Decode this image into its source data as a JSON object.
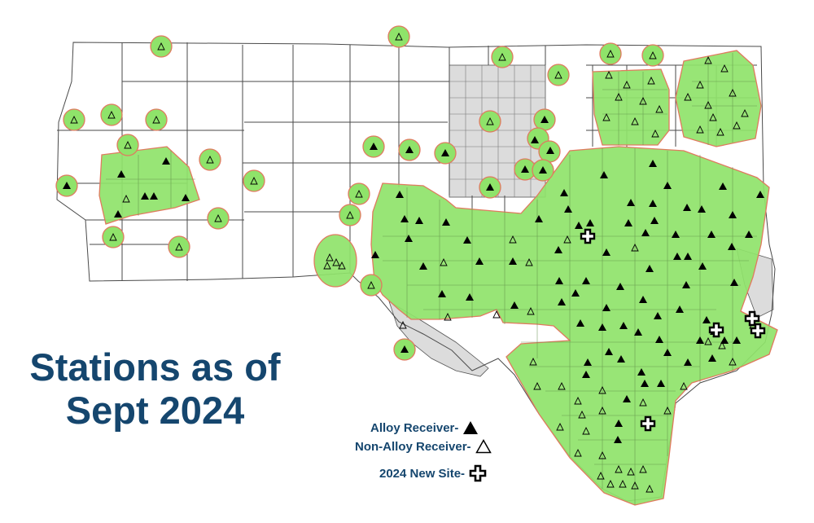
{
  "title": {
    "line1": "Stations as of",
    "line2": "Sept 2024",
    "color": "#15466e"
  },
  "legend": {
    "alloy_label": "Alloy Receiver-",
    "alloy_icon": "filled-triangle",
    "non_alloy_label": "Non-Alloy Receiver-",
    "non_alloy_icon": "hollow-triangle",
    "new_site_label": "2024 New Site-",
    "new_site_icon": "bold-cross",
    "text_color": "#15466e"
  },
  "colors": {
    "coverage_fill": "#8fe36a",
    "coverage_stroke": "#e07a5f",
    "excluded_region_fill": "#dcdcdc",
    "county_line": "#4a4a4a",
    "marker": "#000000"
  }
}
